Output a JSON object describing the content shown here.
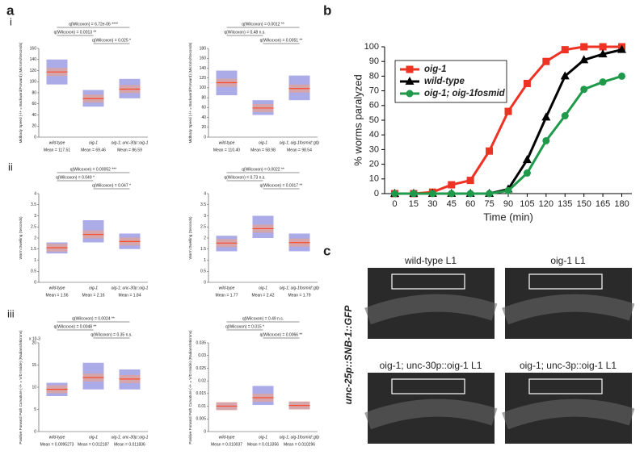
{
  "panel_labels": [
    "a",
    "b",
    "c"
  ],
  "row_labels": [
    "i",
    "ii",
    "iii"
  ],
  "chart_data": [
    {
      "type": "box",
      "y_label": "Midbody Speed (-/+ = Backward/Forward) (Microns/Seconds)",
      "categories": [
        "wild-type",
        "oig-1",
        "oig-1; unc-30p::oig-1"
      ],
      "means": [
        117.51,
        69.46,
        86.59
      ],
      "value_labels": [
        "Mean = 117.51",
        "Mean = 69.46",
        "Mean = 86.59"
      ],
      "box_low": [
        95,
        55,
        70
      ],
      "box_high": [
        140,
        85,
        105
      ],
      "color": "#8f8fe0",
      "mean_color": "#ff4a2a",
      "ylim": [
        0,
        160
      ],
      "yticks": [
        0,
        20,
        40,
        60,
        80,
        100,
        120,
        140,
        160
      ],
      "annotations": [
        "q(Wilcoxon) = 6.72e-06 ****",
        "q(Wilcoxon) = 0.0013 **",
        "q(Wilcoxon) = 0.025 *"
      ]
    },
    {
      "type": "box",
      "y_label": "Midbody Speed (-/+ = Backward/Forward) (Microns/Seconds)",
      "categories": [
        "wild-type",
        "oig-1",
        "oig-1; oig-1fosmid::gfp"
      ],
      "means": [
        110.4,
        58.98,
        98.54
      ],
      "value_labels": [
        "Mean = 110.40",
        "Mean = 58.98",
        "Mean = 98.54"
      ],
      "box_low": [
        85,
        45,
        75
      ],
      "box_high": [
        135,
        75,
        125
      ],
      "color": "#8f8fe0",
      "mean_color": "#ff4a2a",
      "ylim": [
        0,
        180
      ],
      "yticks": [
        0,
        20,
        40,
        60,
        80,
        100,
        120,
        140,
        160,
        180
      ],
      "annotations": [
        "q(Wilcoxon) = 0.0012 **",
        "q(Wilcoxon) = 0.48 n.s.",
        "q(Wilcoxon) = 0.0051 **"
      ]
    },
    {
      "type": "box",
      "y_label": "Worm Dwelling (Seconds)",
      "categories": [
        "wild-type",
        "oig-1",
        "oig-1; unc-30p::oig-1"
      ],
      "means": [
        1.56,
        2.16,
        1.84
      ],
      "value_labels": [
        "Mean = 1.56",
        "Mean = 2.16",
        "Mean = 1.84"
      ],
      "box_low": [
        1.3,
        1.8,
        1.5
      ],
      "box_high": [
        1.8,
        2.8,
        2.2
      ],
      "color": "#8f8fe0",
      "mean_color": "#ff4a2a",
      "ylim": [
        0,
        4
      ],
      "yticks": [
        0,
        0.5,
        1,
        1.5,
        2,
        2.5,
        3,
        3.5,
        4
      ],
      "annotations": [
        "q(Wilcoxon) = 0.00052 ***",
        "q(Wilcoxon) = 0.049 *",
        "q(Wilcoxon) = 0.047 *"
      ]
    },
    {
      "type": "box",
      "y_label": "Worm Dwelling (Seconds)",
      "categories": [
        "wild-type",
        "oig-1",
        "oig-1; oig-1fosmid::gfp"
      ],
      "means": [
        1.77,
        2.42,
        1.79
      ],
      "value_labels": [
        "Mean = 1.77",
        "Mean = 2.42",
        "Mean = 1.79"
      ],
      "box_low": [
        1.4,
        2,
        1.4
      ],
      "box_high": [
        2.1,
        3,
        2.2
      ],
      "color": "#8f8fe0",
      "mean_color": "#ff4a2a",
      "ylim": [
        0,
        4
      ],
      "yticks": [
        0,
        0.5,
        1,
        1.5,
        2,
        2.5,
        3,
        3.5,
        4
      ],
      "annotations": [
        "q(Wilcoxon) = 0.0022 **",
        "q(Wilcoxon) = 0.73 n.s.",
        "q(Wilcoxon) = 0.0017 **"
      ]
    },
    {
      "type": "box",
      "y_label": "Positive Forward Path Curvature (-/+ = V/D Inside) (Radians/Microns)",
      "axis_multiplier": "x 10-3",
      "categories": [
        "wild-type",
        "oig-1",
        "oig-1; unc-30p::oig-1"
      ],
      "means": [
        0.0095273,
        0.012187,
        0.011836
      ],
      "value_labels": [
        "Mean = 0.0095273",
        "Mean = 0.012187",
        "Mean = 0.011836"
      ],
      "box_low": [
        0.008,
        0.0095,
        0.0095
      ],
      "box_high": [
        0.011,
        0.0155,
        0.014
      ],
      "color": "#8f8fe0",
      "mean_color": "#ff4a2a",
      "ylim": [
        0,
        0.02
      ],
      "yticks": [
        {
          "value": 0,
          "label": "0"
        },
        {
          "value": 0.005,
          "label": "5"
        },
        {
          "value": 0.01,
          "label": "10"
        },
        {
          "value": 0.015,
          "label": "15"
        },
        {
          "value": 0.02,
          "label": "20"
        }
      ],
      "annotations": [
        "q(Wilcoxon) = 0.0024 **",
        "q(Wilcoxon) = 0.0048 **",
        "q(Wilcoxon) = 0.35 n.s."
      ]
    },
    {
      "type": "box",
      "y_label": "Positive Forward Path Curvature (-/+ = V/D Inside) (Radians/Microns)",
      "categories": [
        "wild-type",
        "oig-1",
        "oig-1; oig-1fosmid::gfp"
      ],
      "means": [
        0.010037,
        0.013356,
        0.010296
      ],
      "value_labels": [
        "Mean = 0.010037",
        "Mean = 0.013356",
        "Mean = 0.010296"
      ],
      "box_low": [
        0.0085,
        0.0105,
        0.0088
      ],
      "box_high": [
        0.0115,
        0.018,
        0.0118
      ],
      "color": "#8f8fe0",
      "mean_color": "#ff4a2a",
      "ylim": [
        0,
        0.035
      ],
      "yticks": [
        0,
        0.005,
        0.01,
        0.015,
        0.02,
        0.025,
        0.03,
        0.035
      ],
      "annotations": [
        "q(Wilcoxon) = 0.49 n.s.",
        "q(Wilcoxon) = 0.015 *",
        "q(Wilcoxon) = 0.0066 **"
      ]
    },
    {
      "type": "line",
      "x_label": "Time (min)",
      "y_label": "% worms paralyzed",
      "x": [
        0,
        15,
        30,
        45,
        60,
        75,
        90,
        105,
        120,
        135,
        150,
        165,
        180
      ],
      "xlim": [
        -8,
        188
      ],
      "xticks": [
        0,
        15,
        30,
        45,
        60,
        75,
        90,
        105,
        120,
        135,
        150,
        165,
        180
      ],
      "ylim": [
        0,
        100
      ],
      "yticks": [
        0,
        10,
        20,
        30,
        40,
        50,
        60,
        70,
        80,
        90,
        100
      ],
      "legend": "upper-left",
      "series": [
        {
          "name": "oig-1",
          "color": "#ee3224",
          "marker": "square",
          "values": [
            0,
            0,
            1,
            6,
            9,
            29,
            56,
            75,
            90,
            98,
            100,
            100,
            100
          ]
        },
        {
          "name": "wild-type",
          "color": "#000000",
          "marker": "triangle",
          "values": [
            0,
            0,
            0,
            0,
            0,
            0,
            3,
            23,
            52,
            80,
            91,
            95,
            98
          ]
        },
        {
          "name": "oig-1; oig-1fosmid",
          "color": "#1f9a4a",
          "marker": "circle",
          "values": [
            0,
            0,
            0,
            0,
            0,
            0,
            2,
            14,
            36,
            53,
            71,
            76,
            80
          ]
        }
      ]
    }
  ],
  "images_y_label": "unc-25p::SNB-1::GFP",
  "images": [
    "wild-type L1",
    "oig-1 L1",
    "oig-1; unc-30p::oig-1 L1",
    "oig-1; unc-3p::oig-1 L1"
  ]
}
